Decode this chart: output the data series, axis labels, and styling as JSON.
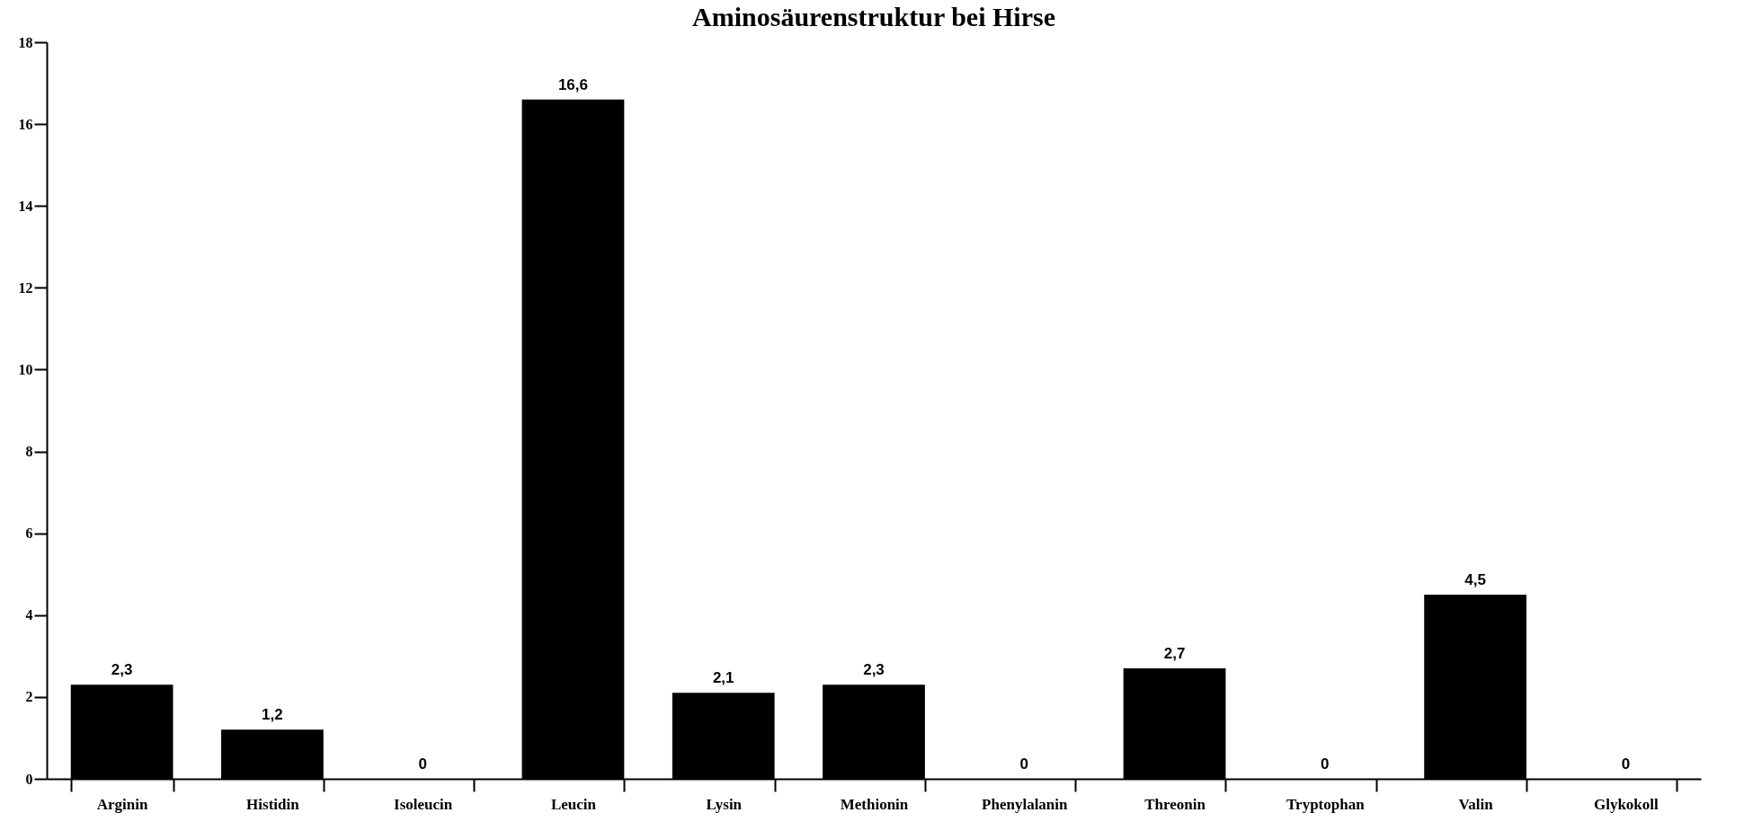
{
  "chart_data": {
    "type": "bar",
    "title": "Aminosäurenstruktur bei Hirse",
    "categories": [
      "Arginin",
      "Histidin",
      "Isoleucin",
      "Leucin",
      "Lysin",
      "Methionin",
      "Phenylalanin",
      "Threonin",
      "Tryptophan",
      "Valin",
      "Glykokoll"
    ],
    "values": [
      2.3,
      1.2,
      0,
      16.6,
      2.1,
      2.3,
      0,
      2.7,
      0,
      4.5,
      0
    ],
    "value_labels": [
      "2,3",
      "1,2",
      "0",
      "16,6",
      "2,1",
      "2,3",
      "0",
      "2,7",
      "0",
      "4,5",
      "0"
    ],
    "color": "#000000",
    "ylim": [
      0,
      18
    ],
    "yticks": [
      0,
      2,
      4,
      6,
      8,
      10,
      12,
      14,
      16,
      18
    ],
    "grid": false
  }
}
